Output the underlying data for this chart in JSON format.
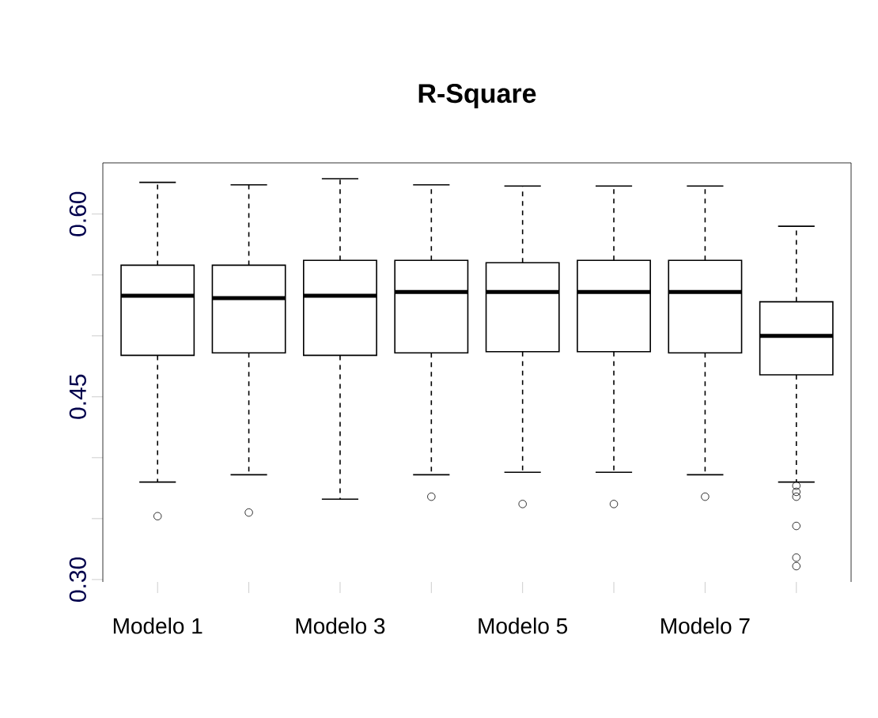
{
  "chart_data": {
    "type": "box",
    "title": "R-Square",
    "categories": [
      "Modelo 1",
      null,
      "Modelo 3",
      null,
      "Modelo 5",
      null,
      "Modelo 7",
      null
    ],
    "boxes": [
      {
        "low": 0.38,
        "q1": 0.484,
        "median": 0.533,
        "q3": 0.558,
        "high": 0.626,
        "outliers": [
          0.352
        ]
      },
      {
        "low": 0.386,
        "q1": 0.486,
        "median": 0.531,
        "q3": 0.558,
        "high": 0.624,
        "outliers": [
          0.355
        ]
      },
      {
        "low": 0.366,
        "q1": 0.484,
        "median": 0.533,
        "q3": 0.562,
        "high": 0.629
      },
      {
        "low": 0.386,
        "q1": 0.486,
        "median": 0.536,
        "q3": 0.562,
        "high": 0.624,
        "outliers": [
          0.368
        ]
      },
      {
        "low": 0.388,
        "q1": 0.487,
        "median": 0.536,
        "q3": 0.56,
        "high": 0.623,
        "outliers": [
          0.362
        ]
      },
      {
        "low": 0.388,
        "q1": 0.487,
        "median": 0.536,
        "q3": 0.562,
        "high": 0.623,
        "outliers": [
          0.362
        ]
      },
      {
        "low": 0.386,
        "q1": 0.486,
        "median": 0.536,
        "q3": 0.562,
        "high": 0.623,
        "outliers": [
          0.368
        ]
      },
      {
        "low": 0.38,
        "q1": 0.468,
        "median": 0.5,
        "q3": 0.528,
        "high": 0.59,
        "outliers": [
          0.377,
          0.372,
          0.368,
          0.344,
          0.318,
          0.311
        ]
      }
    ],
    "ylim": [
      0.298,
      0.642
    ],
    "yticks": [
      {
        "value": 0.3,
        "label": "0.30"
      },
      {
        "value": 0.35,
        "label": null
      },
      {
        "value": 0.4,
        "label": null
      },
      0.45,
      {
        "value": 0.5,
        "label": null
      },
      {
        "value": 0.55,
        "label": null
      },
      {
        "value": 0.6,
        "label": "0.60"
      }
    ],
    "marker": "circle"
  }
}
